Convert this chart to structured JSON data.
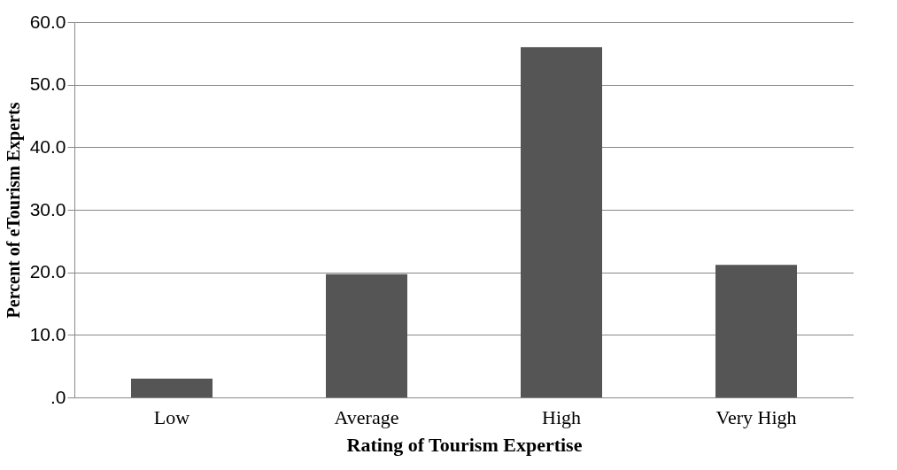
{
  "chart_data": {
    "type": "bar",
    "xlabel": "Rating of Tourism Expertise",
    "ylabel": "Percent of eTourism Experts",
    "categories": [
      "Low",
      "Average",
      "High",
      "Very High"
    ],
    "values": [
      3.0,
      19.7,
      56.0,
      21.2
    ],
    "color": "#555555",
    "ylim": [
      0,
      60
    ],
    "yticks": [
      {
        "value": 0,
        "label": ".0"
      },
      {
        "value": 10,
        "label": "10.0"
      },
      {
        "value": 20,
        "label": "20.0"
      },
      {
        "value": 30,
        "label": "30.0"
      },
      {
        "value": 40,
        "label": "40.0"
      },
      {
        "value": 50,
        "label": "50.0"
      },
      {
        "value": 60,
        "label": "60.0"
      }
    ],
    "grid": "y"
  }
}
